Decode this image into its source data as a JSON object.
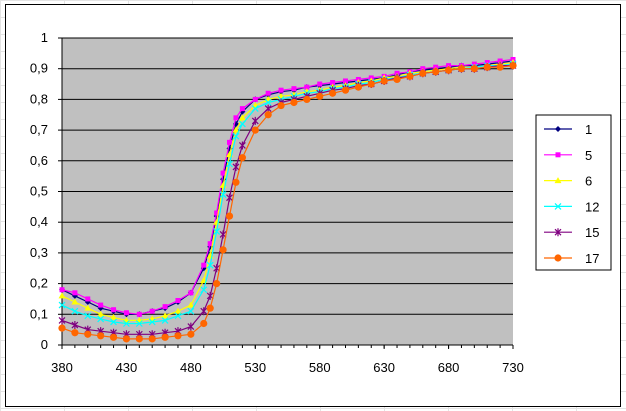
{
  "chart_data": {
    "type": "line",
    "title": "",
    "xlabel": "",
    "ylabel": "",
    "xlim": [
      380,
      730
    ],
    "ylim": [
      0,
      1
    ],
    "x_ticks": [
      380,
      430,
      480,
      530,
      580,
      630,
      680,
      730
    ],
    "x_tick_labels": [
      "380",
      "430",
      "480",
      "530",
      "580",
      "630",
      "680",
      "730"
    ],
    "y_ticks": [
      0,
      0.1,
      0.2,
      0.3,
      0.4,
      0.5,
      0.6,
      0.7,
      0.8,
      0.9,
      1
    ],
    "y_tick_labels": [
      "0",
      "0,1",
      "0,2",
      "0,3",
      "0,4",
      "0,5",
      "0,6",
      "0,7",
      "0,8",
      "0,9",
      "1"
    ],
    "grid": true,
    "plot_background": "#c0c0c0",
    "legend_position": "right",
    "x": [
      380,
      390,
      400,
      410,
      420,
      430,
      440,
      450,
      460,
      470,
      480,
      490,
      495,
      500,
      505,
      510,
      515,
      520,
      530,
      540,
      550,
      560,
      570,
      580,
      590,
      600,
      610,
      620,
      630,
      640,
      650,
      660,
      670,
      680,
      690,
      700,
      710,
      720,
      730
    ],
    "series": [
      {
        "name": "1",
        "color": "#000080",
        "marker": "diamond",
        "values": [
          0.18,
          0.16,
          0.14,
          0.12,
          0.11,
          0.1,
          0.1,
          0.11,
          0.12,
          0.14,
          0.17,
          0.25,
          0.32,
          0.42,
          0.54,
          0.64,
          0.72,
          0.76,
          0.8,
          0.815,
          0.825,
          0.83,
          0.84,
          0.845,
          0.85,
          0.855,
          0.86,
          0.865,
          0.87,
          0.88,
          0.89,
          0.895,
          0.9,
          0.905,
          0.91,
          0.91,
          0.915,
          0.92,
          0.925
        ]
      },
      {
        "name": "5",
        "color": "#ff00ff",
        "marker": "square",
        "values": [
          0.18,
          0.17,
          0.15,
          0.13,
          0.115,
          0.105,
          0.1,
          0.11,
          0.125,
          0.145,
          0.17,
          0.26,
          0.33,
          0.43,
          0.56,
          0.66,
          0.74,
          0.77,
          0.8,
          0.82,
          0.83,
          0.835,
          0.84,
          0.85,
          0.855,
          0.86,
          0.865,
          0.87,
          0.875,
          0.885,
          0.89,
          0.9,
          0.905,
          0.91,
          0.91,
          0.915,
          0.92,
          0.925,
          0.93
        ]
      },
      {
        "name": "6",
        "color": "#ffff00",
        "marker": "triangle",
        "values": [
          0.16,
          0.14,
          0.12,
          0.1,
          0.09,
          0.08,
          0.08,
          0.085,
          0.095,
          0.11,
          0.13,
          0.21,
          0.29,
          0.4,
          0.52,
          0.62,
          0.7,
          0.74,
          0.78,
          0.8,
          0.81,
          0.815,
          0.825,
          0.83,
          0.84,
          0.845,
          0.855,
          0.86,
          0.87,
          0.875,
          0.885,
          0.89,
          0.895,
          0.9,
          0.905,
          0.905,
          0.91,
          0.915,
          0.92
        ]
      },
      {
        "name": "12",
        "color": "#00ffff",
        "marker": "x",
        "values": [
          0.13,
          0.11,
          0.095,
          0.085,
          0.075,
          0.07,
          0.07,
          0.075,
          0.08,
          0.095,
          0.11,
          0.18,
          0.26,
          0.37,
          0.49,
          0.59,
          0.68,
          0.72,
          0.77,
          0.79,
          0.8,
          0.81,
          0.82,
          0.825,
          0.835,
          0.84,
          0.85,
          0.855,
          0.865,
          0.87,
          0.88,
          0.885,
          0.89,
          0.895,
          0.9,
          0.905,
          0.91,
          0.91,
          0.915
        ]
      },
      {
        "name": "15",
        "color": "#800080",
        "marker": "star",
        "values": [
          0.08,
          0.065,
          0.05,
          0.045,
          0.04,
          0.035,
          0.035,
          0.035,
          0.04,
          0.045,
          0.06,
          0.11,
          0.16,
          0.25,
          0.36,
          0.48,
          0.58,
          0.65,
          0.73,
          0.77,
          0.79,
          0.8,
          0.81,
          0.82,
          0.83,
          0.835,
          0.845,
          0.85,
          0.86,
          0.87,
          0.875,
          0.885,
          0.89,
          0.895,
          0.9,
          0.9,
          0.905,
          0.91,
          0.91
        ]
      },
      {
        "name": "17",
        "color": "#ff6600",
        "marker": "circle",
        "values": [
          0.055,
          0.04,
          0.035,
          0.03,
          0.025,
          0.02,
          0.02,
          0.02,
          0.025,
          0.03,
          0.035,
          0.07,
          0.12,
          0.2,
          0.31,
          0.42,
          0.53,
          0.61,
          0.7,
          0.75,
          0.78,
          0.79,
          0.8,
          0.81,
          0.82,
          0.83,
          0.84,
          0.85,
          0.86,
          0.865,
          0.875,
          0.885,
          0.89,
          0.895,
          0.9,
          0.9,
          0.905,
          0.905,
          0.91
        ]
      }
    ]
  }
}
